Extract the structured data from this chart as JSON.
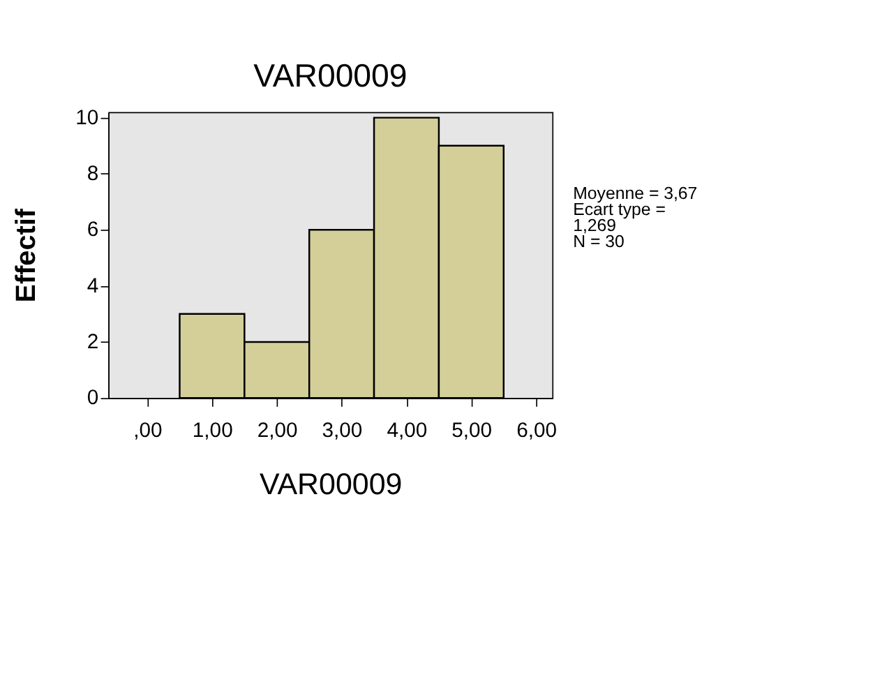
{
  "chart_data": {
    "type": "histogram",
    "title": "VAR00009",
    "xlabel": "VAR00009",
    "ylabel": "Effectif",
    "bins": [
      0.5,
      1.5,
      2.5,
      3.5,
      4.5,
      5.5
    ],
    "values": [
      3,
      2,
      6,
      10,
      9
    ],
    "color": "#d4cf98",
    "xlim": [
      -0.6,
      6.25
    ],
    "xticks": [
      {
        "value": 0,
        "label": ",00"
      },
      {
        "value": 1,
        "label": "1,00"
      },
      {
        "value": 2,
        "label": "2,00"
      },
      {
        "value": 3,
        "label": "3,00"
      },
      {
        "value": 4,
        "label": "4,00"
      },
      {
        "value": 5,
        "label": "5,00"
      },
      {
        "value": 6,
        "label": "6,00"
      }
    ],
    "ylim": [
      0,
      10.2
    ],
    "yticks": [
      0,
      2,
      4,
      6,
      8,
      10
    ],
    "grid": false,
    "annotations": [
      "Moyenne = 3,67",
      "Ecart type =",
      "1,269",
      "N = 30"
    ]
  }
}
